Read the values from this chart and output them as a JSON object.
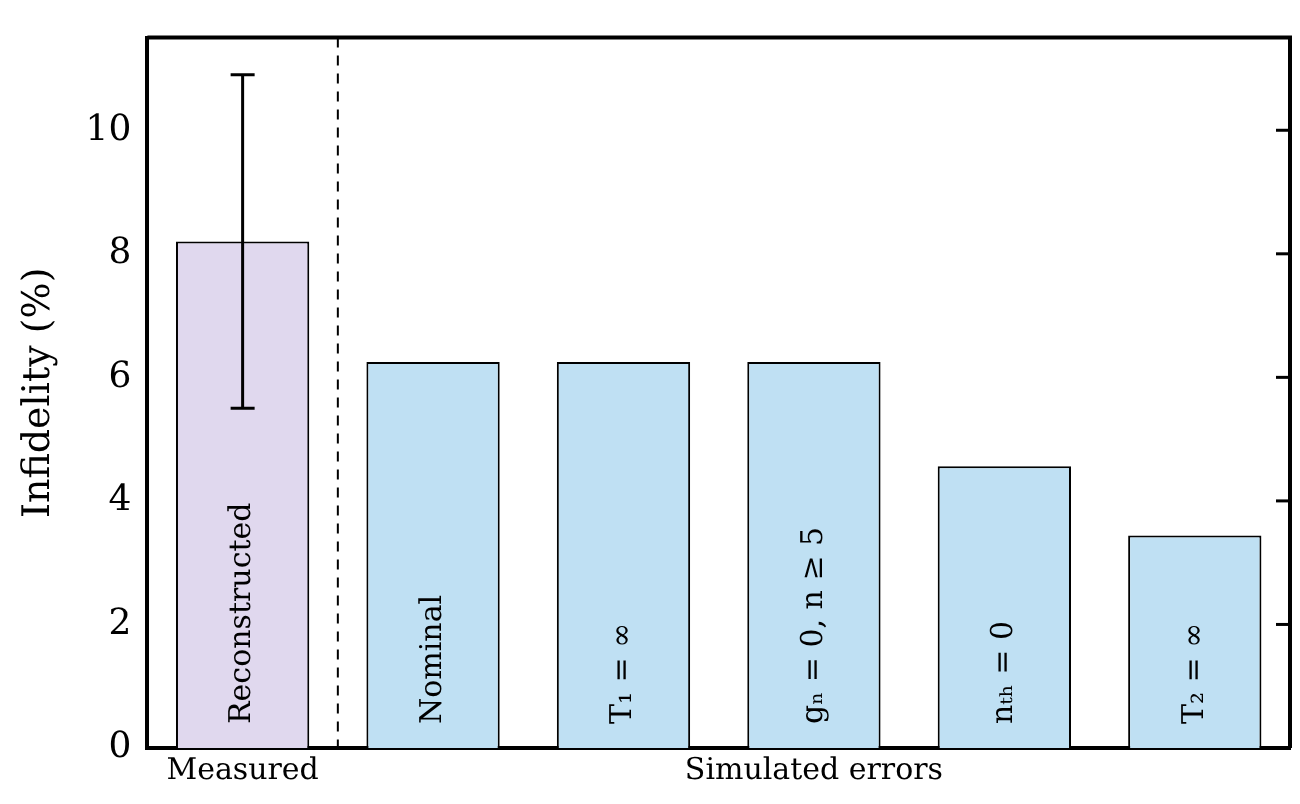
{
  "chart_data": {
    "type": "bar",
    "ylabel": "Infidelity (%)",
    "categories": [
      "Reconstructed",
      "Nominal",
      "T₁ = ∞",
      "gₙ = 0, n ≥ 5",
      "nₜₕ = 0",
      "T₂ = ∞"
    ],
    "values": [
      8.2,
      6.25,
      6.25,
      6.25,
      4.56,
      3.44
    ],
    "colors": [
      "#e0d8ee",
      "#bfe0f3",
      "#bfe0f3",
      "#bfe0f3",
      "#bfe0f3",
      "#bfe0f3"
    ],
    "errors": [
      [
        5.5,
        10.9
      ],
      null,
      null,
      null,
      null,
      null
    ],
    "ylim": [
      0,
      11.5
    ],
    "yticks": [
      0,
      2,
      4,
      6,
      8,
      10
    ],
    "grid": false,
    "legend": false,
    "annotations": [
      "Measured",
      "Simulated errors"
    ]
  }
}
